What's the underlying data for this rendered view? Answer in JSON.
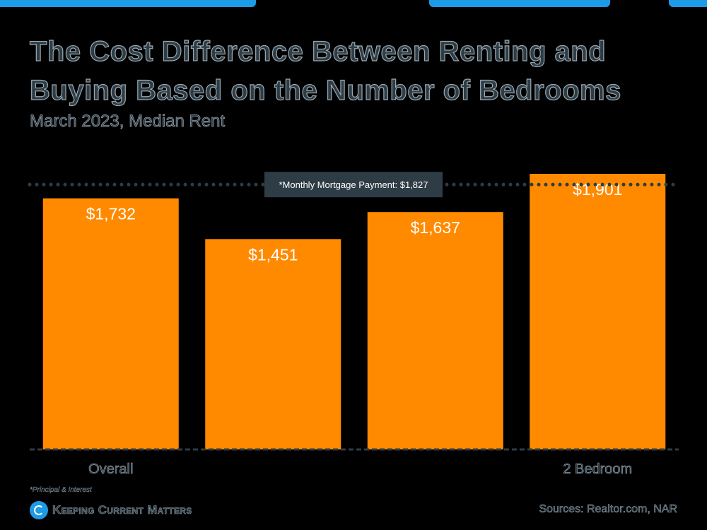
{
  "header": {
    "title": "The Cost Difference Between Renting and Buying Based on the Number of Bedrooms",
    "subtitle": "March 2023, Median Rent"
  },
  "chart_data": {
    "type": "bar",
    "categories": [
      "Overall",
      "",
      "",
      "2 Bedroom"
    ],
    "values": [
      1732,
      1451,
      1637,
      1901
    ],
    "value_labels": [
      "$1,732",
      "$1,451",
      "$1,637",
      "$1,901"
    ],
    "ylim": [
      0,
      1901
    ],
    "grid": false,
    "reference_line": {
      "value": 1827,
      "label": "*Monthly Mortgage Payment: $1,827",
      "style": "dotted"
    },
    "colors": {
      "bar": "#FF8A00",
      "bar_label": "#FFFFFF",
      "reference_line": "#2E3C46",
      "callout_bg": "#2E3C46",
      "callout_text": "#FFFFFF",
      "axis": "#2E3C46",
      "category_label": "#2E3C46"
    }
  },
  "footer": {
    "footnote": "*Principal & Interest",
    "brand": "Keeping Current Matters",
    "brand_icon": "kcm-logo-icon",
    "sources": "Sources: Realtor.com, NAR"
  },
  "colors": {
    "background": "#000000",
    "accent": "#1E9BE6"
  }
}
